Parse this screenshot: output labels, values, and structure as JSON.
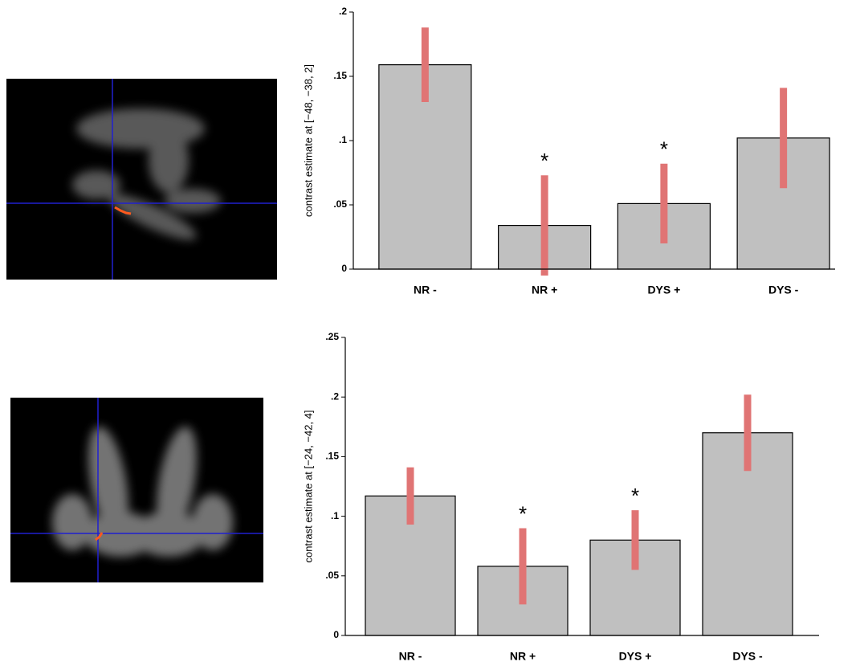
{
  "chart_data": [
    {
      "type": "bar",
      "ylabel": "contrast estimate at [−48, −38, 2]",
      "categories": [
        "NR -",
        "NR +",
        "DYS +",
        "DYS -"
      ],
      "values": [
        0.159,
        0.034,
        0.051,
        0.102
      ],
      "errors": [
        0.029,
        0.039,
        0.031,
        0.039
      ],
      "significance": [
        null,
        "*",
        "*",
        null
      ],
      "color": "#c0c0c0",
      "error_color": "#e07474",
      "ylim": [
        0,
        0.2
      ],
      "yticks": [
        0,
        {
          "value": 0.05,
          "label": ".05"
        },
        {
          "value": 0.1,
          "label": ".1"
        },
        {
          "value": 0.15,
          "label": ".15"
        },
        {
          "value": 0.2,
          "label": ".2"
        }
      ]
    },
    {
      "type": "bar",
      "ylabel": "contrast estimate at [−24, −42, 4]",
      "categories": [
        "NR -",
        "NR +",
        "DYS +",
        "DYS -"
      ],
      "values": [
        0.117,
        0.058,
        0.08,
        0.17
      ],
      "errors": [
        0.024,
        0.032,
        0.025,
        0.032
      ],
      "significance": [
        null,
        "*",
        "*",
        null
      ],
      "color": "#c0c0c0",
      "error_color": "#e07474",
      "ylim": [
        0,
        0.25
      ],
      "yticks": [
        0,
        {
          "value": 0.05,
          "label": ".05"
        },
        {
          "value": 0.1,
          "label": ".1"
        },
        {
          "value": 0.15,
          "label": ".15"
        },
        {
          "value": 0.2,
          "label": ".2"
        },
        {
          "value": 0.25,
          "label": ".25"
        }
      ]
    }
  ]
}
